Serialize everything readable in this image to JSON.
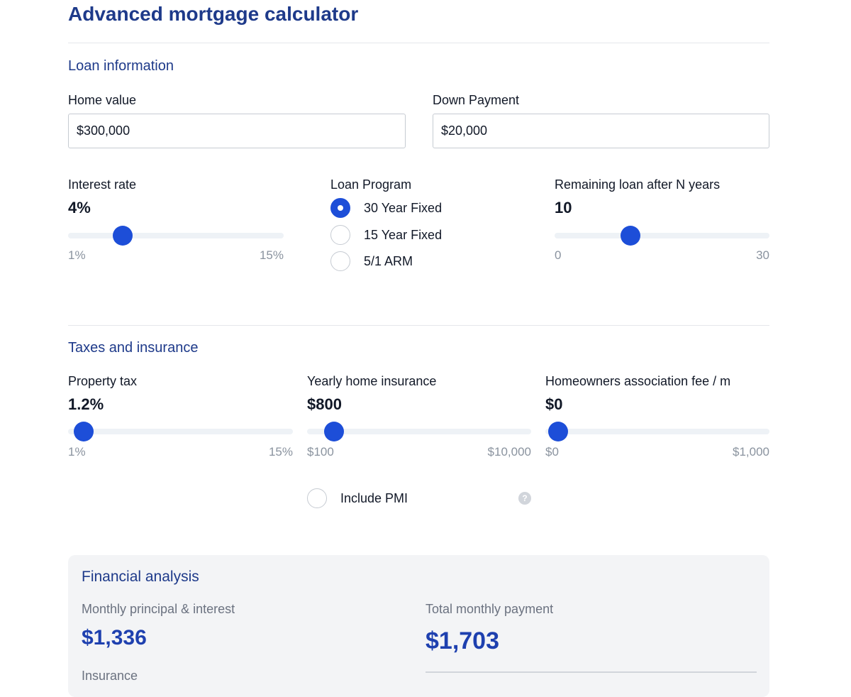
{
  "page": {
    "title": "Advanced mortgage calculator"
  },
  "loan_info": {
    "section_title": "Loan information",
    "home_value": {
      "label": "Home value",
      "value": "$300,000"
    },
    "down_payment": {
      "label": "Down Payment",
      "value": "$20,000"
    },
    "interest_rate": {
      "label": "Interest rate",
      "value": "4%",
      "min": "1%",
      "max": "15%",
      "level": 0.22
    },
    "loan_program": {
      "label": "Loan Program",
      "options": [
        "30 Year Fixed",
        "15 Year Fixed",
        "5/1 ARM"
      ],
      "selected": "30 Year Fixed"
    },
    "remaining_loan": {
      "label": "Remaining loan after N years",
      "value": "10",
      "min": "0",
      "max": "30",
      "level": 0.333
    }
  },
  "taxes": {
    "section_title": "Taxes and insurance",
    "property_tax": {
      "label": "Property tax",
      "value": "1.2%",
      "min": "1%",
      "max": "15%",
      "level": 0.014
    },
    "home_insurance": {
      "label": "Yearly home insurance",
      "value": "$800",
      "min": "$100",
      "max": "$10,000",
      "level": 0.071
    },
    "hoa_fee": {
      "label": "Homeowners association fee / m",
      "value": "$0",
      "min": "$0",
      "max": "$1,000",
      "level": 0.0
    },
    "pmi": {
      "label": "Include PMI",
      "checked": false,
      "help_icon": "question-circle-icon"
    }
  },
  "analysis": {
    "title": "Financial analysis",
    "principal_interest": {
      "label": "Monthly principal & interest",
      "value": "$1,336"
    },
    "total_monthly": {
      "label": "Total monthly payment",
      "value": "$1,703"
    },
    "insurance": {
      "label": "Insurance"
    }
  },
  "colors": {
    "accent": "#1d4ed8",
    "heading": "#1e3a8a",
    "track": "#eef2f6",
    "panel": "#f3f4f6"
  }
}
